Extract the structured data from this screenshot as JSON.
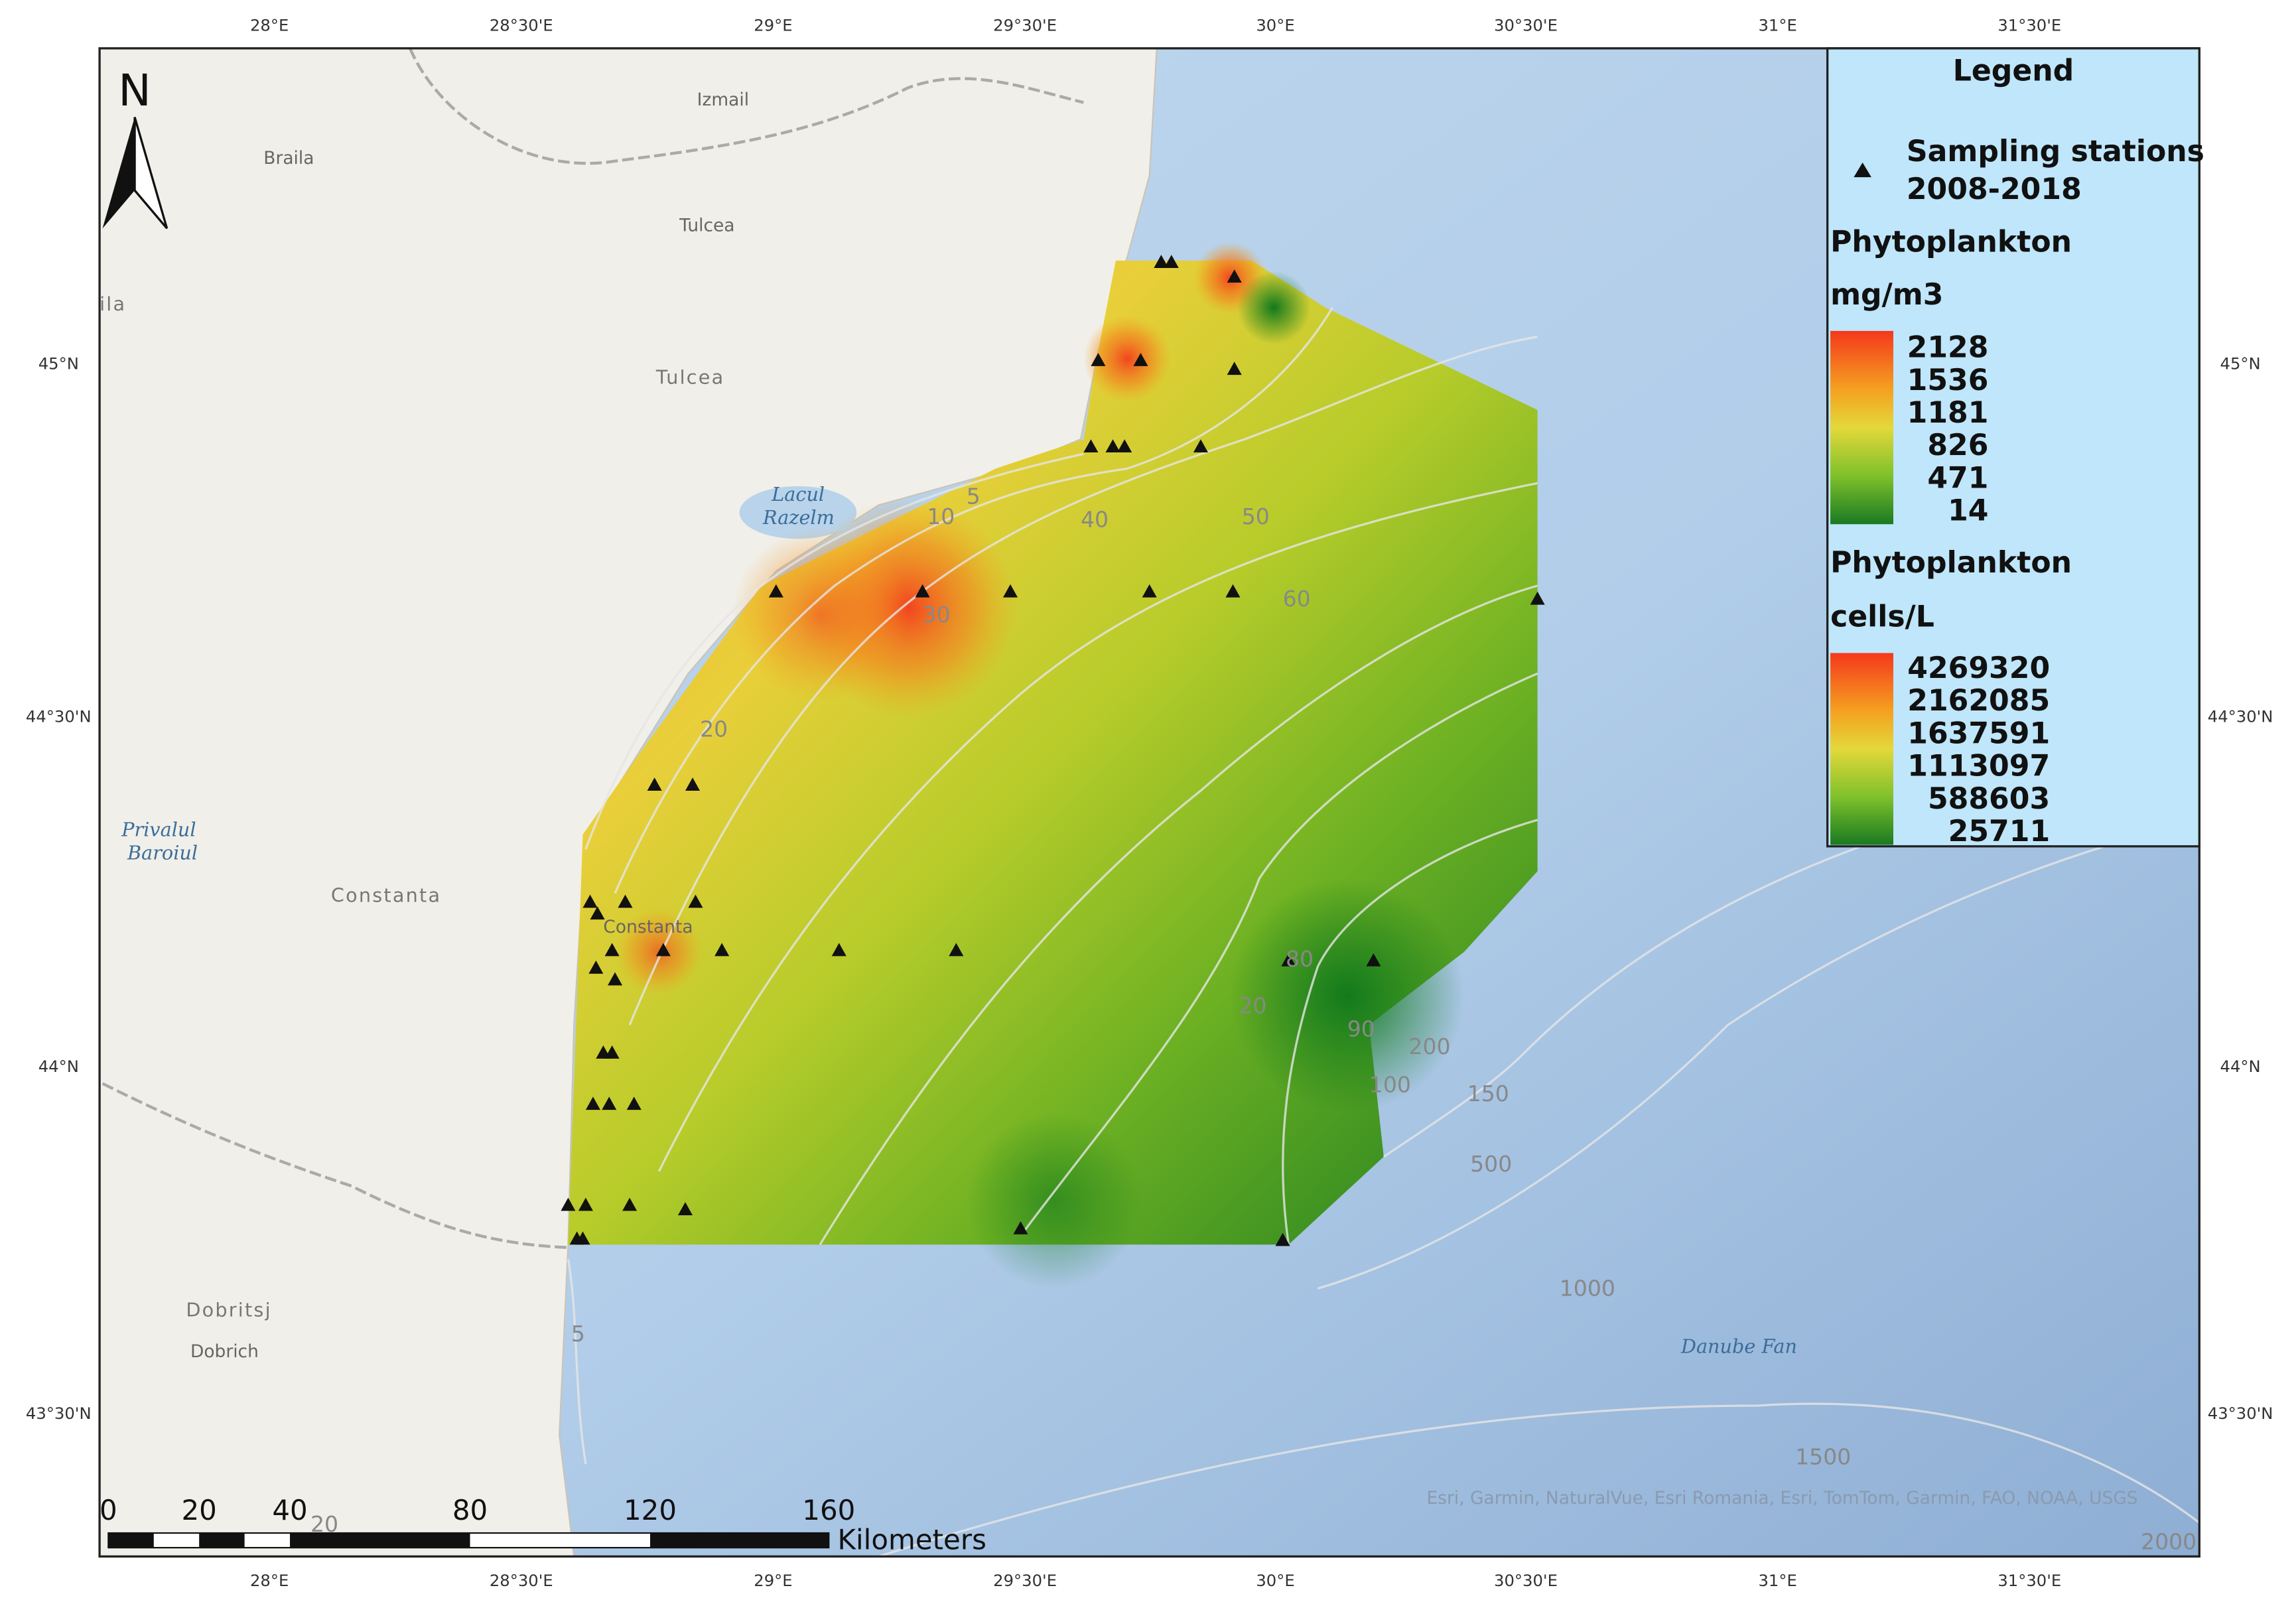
{
  "north": "N",
  "coords": {
    "top": [
      "28°E",
      "28°30'E",
      "29°E",
      "29°30'E",
      "30°E",
      "30°30'E",
      "31°E",
      "31°30'E"
    ],
    "bottom": [
      "28°E",
      "28°30'E",
      "29°E",
      "29°30'E",
      "30°E",
      "30°30'E",
      "31°E",
      "31°30'E"
    ],
    "left": [
      "45°N",
      "44°30'N",
      "44°N",
      "43°30'N"
    ],
    "right": [
      "45°N",
      "44°30'N",
      "44°N",
      "43°30'N"
    ]
  },
  "legend": {
    "title": "Legend",
    "stations": [
      "Sampling stations",
      "2008-2018"
    ],
    "biomass": {
      "name": "Phytoplankton",
      "unit": "mg/m3",
      "values": [
        "2128",
        "1536",
        "1181",
        "826",
        "471",
        "14"
      ]
    },
    "density": {
      "name": "Phytoplankton",
      "unit": "cells/L",
      "values": [
        "4269320",
        "2162085",
        "1637591",
        "1113097",
        "588603",
        "25711"
      ]
    }
  },
  "places": [
    "Izmail",
    "Braila",
    "Tulcea",
    "Tulcea",
    "ila",
    "Lacul",
    "Razelm",
    "Privalul",
    "Baroiul",
    "Constanta",
    "Constanta",
    "Dobritsj",
    "Dobrich",
    "Danube Fan"
  ],
  "contours": [
    "5",
    "10",
    "20",
    "30",
    "40",
    "50",
    "60",
    "80",
    "20",
    "90",
    "100",
    "200",
    "150",
    "500",
    "1000",
    "1500",
    "2000",
    "5",
    "20"
  ],
  "scale": {
    "ticks": [
      "0",
      "20",
      "40",
      "80",
      "120",
      "160"
    ],
    "unit": "Kilometers"
  },
  "attribution": "Esri, Garmin, NaturalVue, Esri Romania, Esri, TomTom, Garmin, FAO, NOAA, USGS"
}
